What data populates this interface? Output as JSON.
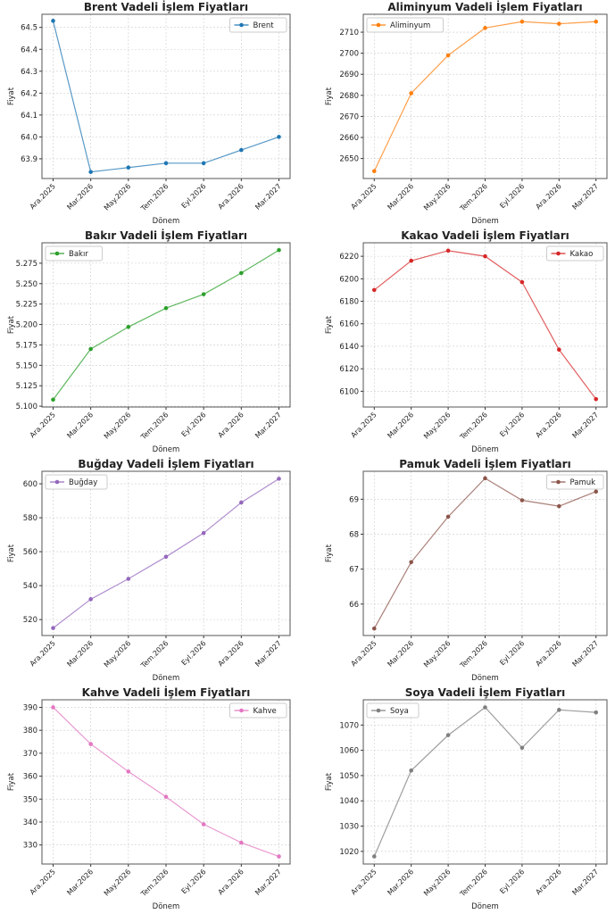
{
  "chart_data": [
    {
      "type": "line",
      "title": "Brent Vadeli İşlem Fiyatları",
      "xlabel": "Dönem",
      "ylabel": "Fiyat",
      "legend": "Brent",
      "legend_position": "top-right",
      "color": "#1f77b4",
      "categories": [
        "Ara.2025",
        "Mar.2026",
        "May.2026",
        "Tem.2026",
        "Eyl.2026",
        "Ara.2026",
        "Mar.2027"
      ],
      "values": [
        64.53,
        63.84,
        63.86,
        63.88,
        63.88,
        63.94,
        64.0
      ],
      "ylim": [
        63.81,
        64.56
      ],
      "yticks": [
        63.9,
        64.0,
        64.1,
        64.2,
        64.3,
        64.4,
        64.5
      ],
      "ytick_labels": [
        "63.9",
        "64.0",
        "64.1",
        "64.2",
        "64.3",
        "64.4",
        "64.5"
      ],
      "grid": true
    },
    {
      "type": "line",
      "title": "Aliminyum Vadeli İşlem Fiyatları",
      "xlabel": "Dönem",
      "ylabel": "Fiyat",
      "legend": "Aliminyum",
      "legend_position": "top-left",
      "color": "#ff7f0e",
      "categories": [
        "Ara.2025",
        "Mar.2026",
        "May.2026",
        "Tem.2026",
        "Eyl.2026",
        "Ara.2026",
        "Mar.2027"
      ],
      "values": [
        2644,
        2681,
        2699,
        2712,
        2715,
        2714,
        2715
      ],
      "ylim": [
        2640.5,
        2718.5
      ],
      "yticks": [
        2650,
        2660,
        2670,
        2680,
        2690,
        2700,
        2710
      ],
      "ytick_labels": [
        "2650",
        "2660",
        "2670",
        "2680",
        "2690",
        "2700",
        "2710"
      ],
      "grid": true
    },
    {
      "type": "line",
      "title": "Bakır Vadeli İşlem Fiyatları",
      "xlabel": "Dönem",
      "ylabel": "Fiyat",
      "legend": "Bakır",
      "legend_position": "top-left",
      "color": "#2ca02c",
      "categories": [
        "Ara.2025",
        "Mar.2026",
        "May.2026",
        "Tem.2026",
        "Eyl.2026",
        "Ara.2026",
        "Mar.2027"
      ],
      "values": [
        5.108,
        5.17,
        5.197,
        5.22,
        5.237,
        5.263,
        5.291
      ],
      "ylim": [
        5.099,
        5.3
      ],
      "yticks": [
        5.1,
        5.125,
        5.15,
        5.175,
        5.2,
        5.225,
        5.25,
        5.275
      ],
      "ytick_labels": [
        "5.100",
        "5.125",
        "5.150",
        "5.175",
        "5.200",
        "5.225",
        "5.250",
        "5.275"
      ],
      "grid": true
    },
    {
      "type": "line",
      "title": "Kakao Vadeli İşlem Fiyatları",
      "xlabel": "Dönem",
      "ylabel": "Fiyat",
      "legend": "Kakao",
      "legend_position": "top-right",
      "color": "#d62728",
      "categories": [
        "Ara.2025",
        "Mar.2026",
        "May.2026",
        "Tem.2026",
        "Eyl.2026",
        "Ara.2026",
        "Mar.2027"
      ],
      "values": [
        6190,
        6216,
        6225,
        6220,
        6197,
        6137,
        6093
      ],
      "ylim": [
        6086,
        6232
      ],
      "yticks": [
        6100,
        6120,
        6140,
        6160,
        6180,
        6200,
        6220
      ],
      "ytick_labels": [
        "6100",
        "6120",
        "6140",
        "6160",
        "6180",
        "6200",
        "6220"
      ],
      "grid": true
    },
    {
      "type": "line",
      "title": "Buğday Vadeli İşlem Fiyatları",
      "xlabel": "Dönem",
      "ylabel": "Fiyat",
      "legend": "Buğday",
      "legend_position": "top-left",
      "color": "#9467bd",
      "categories": [
        "Ara.2025",
        "Mar.2026",
        "May.2026",
        "Tem.2026",
        "Eyl.2026",
        "Ara.2026",
        "Mar.2027"
      ],
      "values": [
        515,
        532,
        544,
        557,
        571,
        589,
        603
      ],
      "ylim": [
        510.6,
        607.4
      ],
      "yticks": [
        520,
        540,
        560,
        580,
        600
      ],
      "ytick_labels": [
        "520",
        "540",
        "560",
        "580",
        "600"
      ],
      "grid": true
    },
    {
      "type": "line",
      "title": "Pamuk Vadeli İşlem Fiyatları",
      "xlabel": "Dönem",
      "ylabel": "Fiyat",
      "legend": "Pamuk",
      "legend_position": "top-right",
      "color": "#8c564b",
      "categories": [
        "Ara.2025",
        "Mar.2026",
        "May.2026",
        "Tem.2026",
        "Eyl.2026",
        "Ara.2026",
        "Mar.2027"
      ],
      "values": [
        65.3,
        67.2,
        68.5,
        69.6,
        68.97,
        68.8,
        69.22
      ],
      "ylim": [
        65.1,
        69.8
      ],
      "yticks": [
        66,
        67,
        68,
        69
      ],
      "ytick_labels": [
        "66",
        "67",
        "68",
        "69"
      ],
      "grid": true
    },
    {
      "type": "line",
      "title": "Kahve Vadeli İşlem Fiyatları",
      "xlabel": "Dönem",
      "ylabel": "Fiyat",
      "legend": "Kahve",
      "legend_position": "top-right",
      "color": "#e377c2",
      "categories": [
        "Ara.2025",
        "Mar.2026",
        "May.2026",
        "Tem.2026",
        "Eyl.2026",
        "Ara.2026",
        "Mar.2027"
      ],
      "values": [
        390,
        374,
        362,
        351,
        339,
        331,
        325
      ],
      "ylim": [
        321.7,
        393.3
      ],
      "yticks": [
        330,
        340,
        350,
        360,
        370,
        380,
        390
      ],
      "ytick_labels": [
        "330",
        "340",
        "350",
        "360",
        "370",
        "380",
        "390"
      ],
      "grid": true
    },
    {
      "type": "line",
      "title": "Soya Vadeli İşlem Fiyatları",
      "xlabel": "Dönem",
      "ylabel": "Fiyat",
      "legend": "Soya",
      "legend_position": "top-left",
      "color": "#7f7f7f",
      "categories": [
        "Ara.2025",
        "Mar.2026",
        "May.2026",
        "Tem.2026",
        "Eyl.2026",
        "Ara.2026",
        "Mar.2027"
      ],
      "values": [
        1018,
        1052,
        1066,
        1077,
        1061,
        1076,
        1075
      ],
      "ylim": [
        1015,
        1080
      ],
      "yticks": [
        1020,
        1030,
        1040,
        1050,
        1060,
        1070
      ],
      "ytick_labels": [
        "1020",
        "1030",
        "1040",
        "1050",
        "1060",
        "1070"
      ],
      "grid": true
    }
  ]
}
